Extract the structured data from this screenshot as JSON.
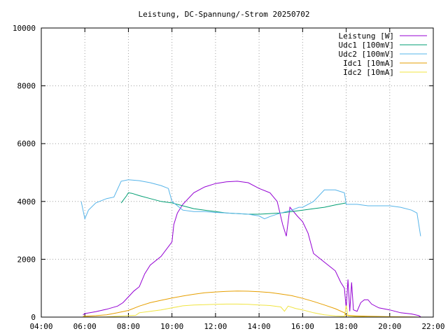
{
  "chart_data": {
    "type": "line",
    "title": "Leistung, DC-Spannung/-Strom 20250702",
    "xlabel": "",
    "ylabel": "",
    "xlim": [
      "04:00",
      "22:00"
    ],
    "ylim": [
      0,
      10000
    ],
    "x_ticks": [
      "04:00",
      "06:00",
      "08:00",
      "10:00",
      "12:00",
      "14:00",
      "16:00",
      "18:00",
      "20:00",
      "22:00"
    ],
    "y_ticks": [
      "0",
      "2000",
      "4000",
      "6000",
      "8000",
      "10000"
    ],
    "grid": true,
    "legend_position": "top-right",
    "series": [
      {
        "name": "Leistung [W]",
        "color": "#9400d3",
        "points": [
          [
            "05:55",
            80
          ],
          [
            "06:00",
            120
          ],
          [
            "06:30",
            190
          ],
          [
            "07:00",
            270
          ],
          [
            "07:30",
            380
          ],
          [
            "07:45",
            500
          ],
          [
            "08:00",
            700
          ],
          [
            "08:15",
            900
          ],
          [
            "08:30",
            1050
          ],
          [
            "08:45",
            1500
          ],
          [
            "09:00",
            1800
          ],
          [
            "09:30",
            2100
          ],
          [
            "10:00",
            2600
          ],
          [
            "10:05",
            3200
          ],
          [
            "10:15",
            3600
          ],
          [
            "10:30",
            3900
          ],
          [
            "11:00",
            4300
          ],
          [
            "11:30",
            4500
          ],
          [
            "12:00",
            4620
          ],
          [
            "12:30",
            4680
          ],
          [
            "13:00",
            4700
          ],
          [
            "13:30",
            4650
          ],
          [
            "14:00",
            4450
          ],
          [
            "14:30",
            4300
          ],
          [
            "14:50",
            4000
          ],
          [
            "15:05",
            3200
          ],
          [
            "15:15",
            2800
          ],
          [
            "15:25",
            3800
          ],
          [
            "15:45",
            3500
          ],
          [
            "16:00",
            3300
          ],
          [
            "16:15",
            2900
          ],
          [
            "16:30",
            2200
          ],
          [
            "17:00",
            1900
          ],
          [
            "17:30",
            1600
          ],
          [
            "17:45",
            1200
          ],
          [
            "17:55",
            1000
          ],
          [
            "18:00",
            300
          ],
          [
            "18:05",
            1300
          ],
          [
            "18:10",
            200
          ],
          [
            "18:15",
            1200
          ],
          [
            "18:20",
            250
          ],
          [
            "18:30",
            200
          ],
          [
            "18:40",
            500
          ],
          [
            "18:50",
            600
          ],
          [
            "19:00",
            600
          ],
          [
            "19:10",
            450
          ],
          [
            "19:30",
            320
          ],
          [
            "20:00",
            250
          ],
          [
            "20:30",
            150
          ],
          [
            "21:00",
            110
          ],
          [
            "21:20",
            50
          ],
          [
            "21:25",
            10
          ]
        ]
      },
      {
        "name": "Udc1 [100mV]",
        "color": "#009e73",
        "points": [
          [
            "07:40",
            3950
          ],
          [
            "07:55",
            4200
          ],
          [
            "08:00",
            4300
          ],
          [
            "08:10",
            4280
          ],
          [
            "08:30",
            4200
          ],
          [
            "09:00",
            4100
          ],
          [
            "09:30",
            4000
          ],
          [
            "10:00",
            3950
          ],
          [
            "10:30",
            3850
          ],
          [
            "11:00",
            3750
          ],
          [
            "11:30",
            3700
          ],
          [
            "12:00",
            3650
          ],
          [
            "12:30",
            3600
          ],
          [
            "13:00",
            3580
          ],
          [
            "13:30",
            3560
          ],
          [
            "14:00",
            3560
          ],
          [
            "14:30",
            3580
          ],
          [
            "15:00",
            3600
          ],
          [
            "15:30",
            3650
          ],
          [
            "16:00",
            3700
          ],
          [
            "16:30",
            3750
          ],
          [
            "17:00",
            3800
          ],
          [
            "17:30",
            3880
          ],
          [
            "18:00",
            3950
          ]
        ]
      },
      {
        "name": "Udc2 [100mV]",
        "color": "#56b4e9",
        "points": [
          [
            "05:50",
            4000
          ],
          [
            "06:00",
            3400
          ],
          [
            "06:10",
            3700
          ],
          [
            "06:30",
            3950
          ],
          [
            "07:00",
            4100
          ],
          [
            "07:20",
            4150
          ],
          [
            "07:40",
            4700
          ],
          [
            "08:00",
            4750
          ],
          [
            "08:30",
            4720
          ],
          [
            "09:00",
            4650
          ],
          [
            "09:30",
            4550
          ],
          [
            "09:50",
            4450
          ],
          [
            "10:00",
            4000
          ],
          [
            "10:30",
            3700
          ],
          [
            "11:00",
            3650
          ],
          [
            "11:30",
            3650
          ],
          [
            "12:00",
            3620
          ],
          [
            "12:30",
            3600
          ],
          [
            "13:00",
            3580
          ],
          [
            "13:30",
            3560
          ],
          [
            "14:00",
            3500
          ],
          [
            "14:15",
            3400
          ],
          [
            "14:30",
            3480
          ],
          [
            "15:00",
            3600
          ],
          [
            "15:30",
            3700
          ],
          [
            "15:50",
            3800
          ],
          [
            "16:00",
            3800
          ],
          [
            "16:30",
            4000
          ],
          [
            "17:00",
            4400
          ],
          [
            "17:30",
            4400
          ],
          [
            "17:55",
            4300
          ],
          [
            "18:00",
            3900
          ],
          [
            "18:30",
            3900
          ],
          [
            "19:00",
            3850
          ],
          [
            "19:30",
            3850
          ],
          [
            "20:00",
            3850
          ],
          [
            "20:30",
            3800
          ],
          [
            "21:00",
            3700
          ],
          [
            "21:15",
            3600
          ],
          [
            "21:25",
            2800
          ]
        ]
      },
      {
        "name": "Idc1 [10mA]",
        "color": "#e69f00",
        "points": [
          [
            "05:55",
            30
          ],
          [
            "06:30",
            50
          ],
          [
            "07:00",
            80
          ],
          [
            "07:30",
            150
          ],
          [
            "08:00",
            230
          ],
          [
            "08:30",
            380
          ],
          [
            "09:00",
            500
          ],
          [
            "09:30",
            580
          ],
          [
            "10:00",
            660
          ],
          [
            "10:30",
            730
          ],
          [
            "11:00",
            790
          ],
          [
            "11:30",
            840
          ],
          [
            "12:00",
            870
          ],
          [
            "12:30",
            890
          ],
          [
            "13:00",
            900
          ],
          [
            "13:30",
            895
          ],
          [
            "14:00",
            880
          ],
          [
            "14:30",
            850
          ],
          [
            "15:00",
            800
          ],
          [
            "15:30",
            740
          ],
          [
            "16:00",
            650
          ],
          [
            "16:30",
            540
          ],
          [
            "17:00",
            420
          ],
          [
            "17:30",
            290
          ],
          [
            "17:55",
            150
          ],
          [
            "18:00",
            60
          ],
          [
            "18:30",
            40
          ],
          [
            "19:00",
            30
          ],
          [
            "20:00",
            15
          ],
          [
            "21:00",
            5
          ],
          [
            "21:25",
            0
          ]
        ]
      },
      {
        "name": "Idc2 [10mA]",
        "color": "#f0e442",
        "points": [
          [
            "05:55",
            5
          ],
          [
            "07:00",
            10
          ],
          [
            "07:30",
            30
          ],
          [
            "08:00",
            50
          ],
          [
            "08:20",
            60
          ],
          [
            "08:30",
            150
          ],
          [
            "09:00",
            200
          ],
          [
            "09:30",
            250
          ],
          [
            "10:00",
            320
          ],
          [
            "10:30",
            390
          ],
          [
            "11:00",
            420
          ],
          [
            "11:30",
            430
          ],
          [
            "12:00",
            440
          ],
          [
            "12:30",
            450
          ],
          [
            "13:00",
            450
          ],
          [
            "13:30",
            440
          ],
          [
            "14:00",
            420
          ],
          [
            "14:30",
            400
          ],
          [
            "15:00",
            350
          ],
          [
            "15:10",
            200
          ],
          [
            "15:20",
            380
          ],
          [
            "15:40",
            300
          ],
          [
            "16:00",
            250
          ],
          [
            "16:30",
            150
          ],
          [
            "17:00",
            80
          ],
          [
            "17:30",
            40
          ],
          [
            "17:55",
            30
          ],
          [
            "18:00",
            400
          ],
          [
            "18:05",
            40
          ],
          [
            "18:30",
            20
          ],
          [
            "19:00",
            10
          ],
          [
            "20:00",
            5
          ],
          [
            "21:25",
            0
          ]
        ]
      }
    ]
  }
}
